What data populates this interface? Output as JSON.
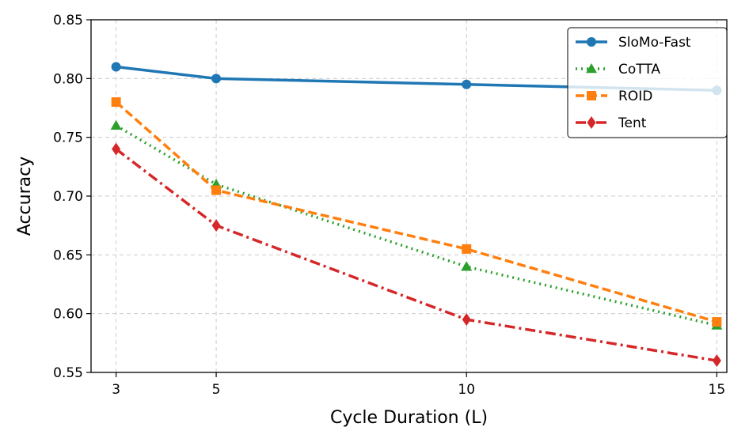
{
  "chart_data": {
    "type": "line",
    "title": "",
    "xlabel": "Cycle Duration (L)",
    "ylabel": "Accuracy",
    "x": [
      3,
      5,
      10,
      15
    ],
    "xticks": [
      "3",
      "5",
      "10",
      "15"
    ],
    "xlim": [
      2.5,
      15.2
    ],
    "ylim": [
      0.55,
      0.85
    ],
    "yticks": [
      "0.55",
      "0.60",
      "0.65",
      "0.70",
      "0.75",
      "0.80",
      "0.85"
    ],
    "grid": true,
    "legend_position": "top-right",
    "series": [
      {
        "name": "SloMo-Fast",
        "values": [
          0.81,
          0.8,
          0.795,
          0.79
        ],
        "color": "#1f77b4",
        "line_style": "solid",
        "marker": "circle"
      },
      {
        "name": "CoTTA",
        "values": [
          0.76,
          0.71,
          0.64,
          0.59
        ],
        "color": "#2ca02c",
        "line_style": "dotted",
        "marker": "triangle"
      },
      {
        "name": "ROID",
        "values": [
          0.78,
          0.705,
          0.655,
          0.593
        ],
        "color": "#ff7f0e",
        "line_style": "dashed",
        "marker": "square"
      },
      {
        "name": "Tent",
        "values": [
          0.74,
          0.675,
          0.595,
          0.56
        ],
        "color": "#d62728",
        "line_style": "dashdot",
        "marker": "diamond"
      }
    ]
  }
}
